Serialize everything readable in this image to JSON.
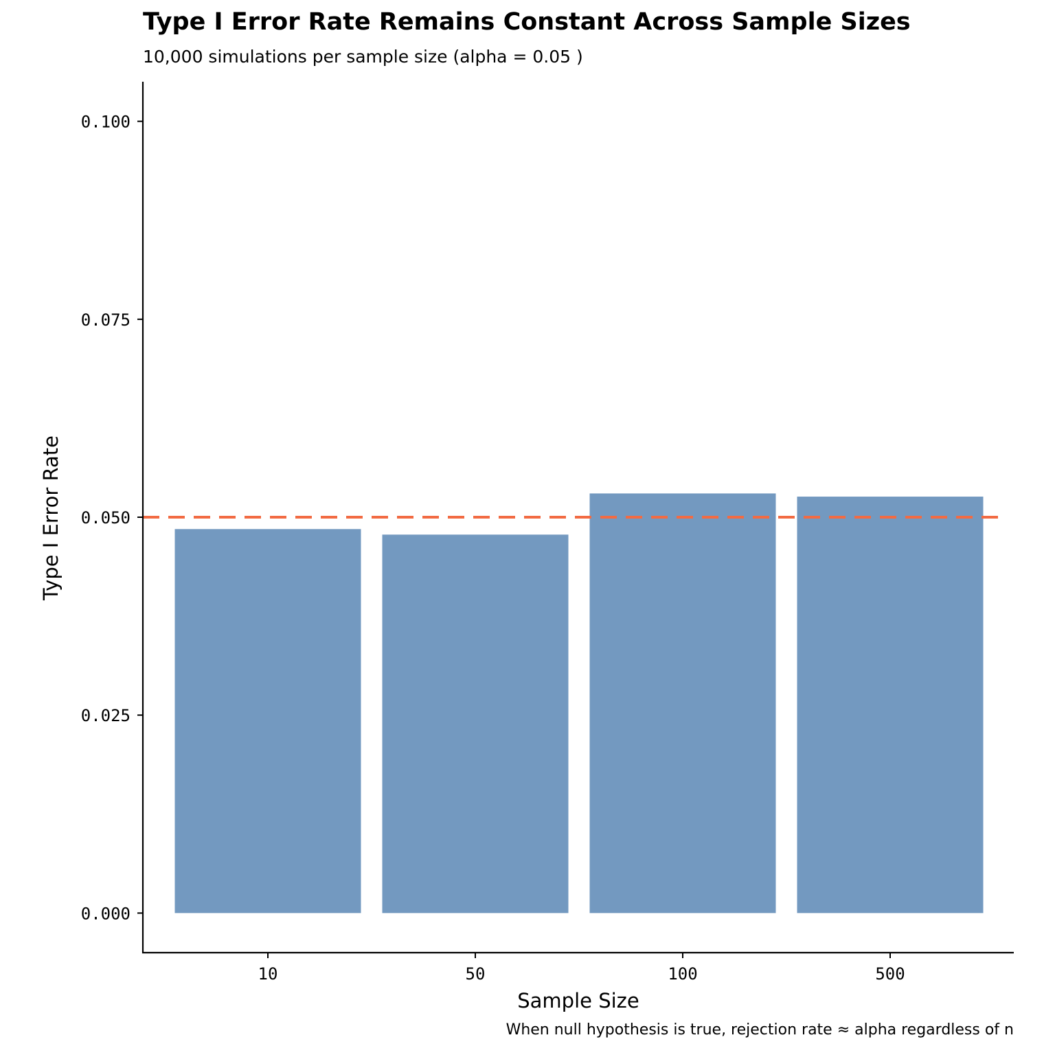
{
  "title": "Type I Error Rate Remains Constant Across Sample Sizes",
  "subtitle": "10,000 simulations per sample size (alpha = 0.05 )",
  "caption": "When null hypothesis is true, rejection rate ≈ alpha regardless of n",
  "colors": {
    "bar": "#7399c0",
    "reference_line": "#f26b43",
    "axis": "#000000"
  },
  "chart_data": {
    "type": "bar",
    "categories": [
      "10",
      "50",
      "100",
      "500"
    ],
    "values": [
      0.0485,
      0.0478,
      0.053,
      0.0526
    ],
    "xlabel": "Sample Size",
    "ylabel": "Type I Error Rate",
    "ylim": [
      -0.005,
      0.105
    ],
    "yticks": [
      0.0,
      0.025,
      0.05,
      0.075,
      0.1
    ],
    "ytick_labels": [
      "0.000",
      "0.025",
      "0.050",
      "0.075",
      "0.100"
    ],
    "reference_line": {
      "y": 0.05,
      "style": "dashed"
    },
    "grid": false,
    "legend": "none"
  }
}
